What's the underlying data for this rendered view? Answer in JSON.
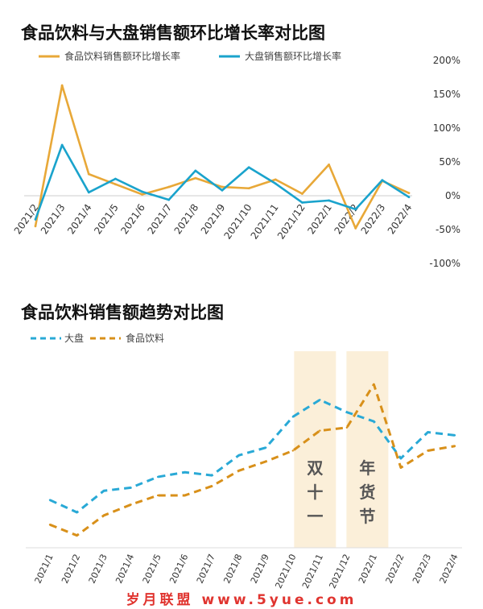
{
  "colors": {
    "food": "#e8a838",
    "market": "#1aa3cc",
    "food_dash": "#d8901a",
    "market_dash": "#29a9d6",
    "band": "#fbefd9",
    "watermark": "#e0342f"
  },
  "chart_data": [
    {
      "type": "line",
      "title": "食品饮料与大盘销售额环比增长率对比图",
      "x": [
        "2021/2",
        "2021/3",
        "2021/4",
        "2021/5",
        "2021/6",
        "2021/7",
        "2021/8",
        "2021/9",
        "2021/10",
        "2021/11",
        "2021/12",
        "2022/1",
        "2022/2",
        "2022/3",
        "2022/4"
      ],
      "series": [
        {
          "name": "食品饮料销售额环比增长率",
          "values": [
            -45,
            163,
            32,
            17,
            2,
            13,
            26,
            13,
            11,
            24,
            3,
            46,
            -48,
            22,
            4
          ]
        },
        {
          "name": "大盘销售额环比增长率",
          "values": [
            -35,
            75,
            5,
            25,
            6,
            -6,
            37,
            8,
            42,
            18,
            -10,
            -7,
            -20,
            23,
            -2
          ]
        }
      ],
      "ylim": [
        -100,
        200
      ],
      "yticks": [
        "200%",
        "150%",
        "100%",
        "50%",
        "0%",
        "-50%",
        "-100%"
      ],
      "legend": "top-left"
    },
    {
      "type": "line",
      "title": "食品饮料销售额趋势对比图",
      "x": [
        "2021/1",
        "2021/2",
        "2021/3",
        "2021/4",
        "2021/5",
        "2021/6",
        "2021/7",
        "2021/8",
        "2021/9",
        "2021/10",
        "2021/11",
        "2021/12",
        "2022/1",
        "2022/2",
        "2022/3",
        "2022/4"
      ],
      "series": [
        {
          "name": "大盘",
          "values": [
            31,
            23,
            37,
            39,
            46,
            49,
            47,
            60,
            65,
            85,
            96,
            88,
            82,
            58,
            75,
            73
          ]
        },
        {
          "name": "食品饮料",
          "values": [
            15,
            8,
            21,
            28,
            34,
            34,
            40,
            50,
            56,
            63,
            76,
            78,
            106,
            52,
            63,
            66
          ]
        }
      ],
      "legend": "top-left",
      "annotations": [
        {
          "text": "双十一",
          "x": "2021/11"
        },
        {
          "text": "年货节",
          "x": "2022/1"
        }
      ]
    }
  ],
  "watermark": "岁月联盟 www.5yue.com"
}
